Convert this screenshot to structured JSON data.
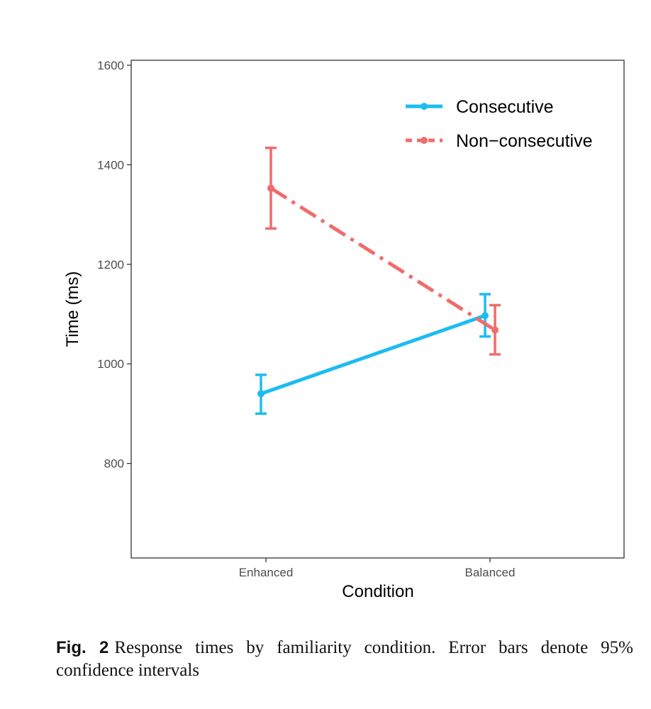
{
  "caption": {
    "label": "Fig. 2",
    "text": "Response times by familiarity condition. Error bars denote 95% confidence intervals"
  },
  "chart_data": {
    "type": "line",
    "xlabel": "Condition",
    "ylabel": "Time (ms)",
    "categories": [
      "Enhanced",
      "Balanced"
    ],
    "ylim": [
      610,
      1610
    ],
    "yticks": [
      800,
      1000,
      1200,
      1400,
      1600
    ],
    "grid": false,
    "legend_position": "top-right",
    "error_bars": "95% confidence intervals",
    "series": [
      {
        "name": "Consecutive",
        "color": "#1cbcf0",
        "line_style": "solid",
        "values": [
          940,
          1097
        ],
        "ci_lower": [
          900,
          1055
        ],
        "ci_upper": [
          978,
          1140
        ]
      },
      {
        "name": "Non−consecutive",
        "color": "#f06b6b",
        "line_style": "dashdot",
        "values": [
          1353,
          1068
        ],
        "ci_lower": [
          1272,
          1019
        ],
        "ci_upper": [
          1434,
          1118
        ]
      }
    ]
  }
}
